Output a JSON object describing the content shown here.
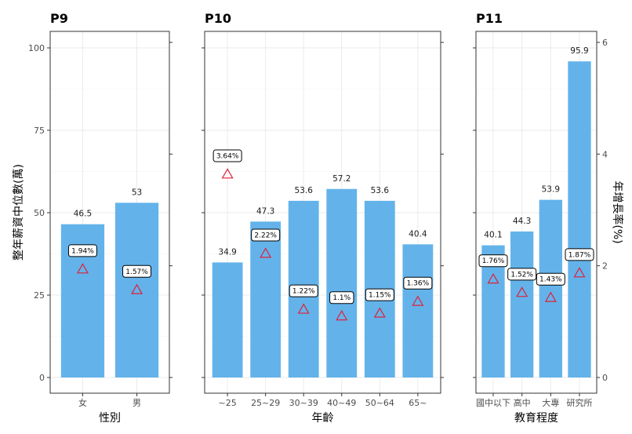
{
  "chart_data": {
    "type": "bar",
    "bar_color": "#63b3ea",
    "marker_color": "#e0203a",
    "left_axis": {
      "title": "整年薪資中位數(萬)",
      "ylim": [
        0,
        100
      ],
      "ticks": [
        "0",
        "25",
        "50",
        "75",
        "100"
      ]
    },
    "right_axis": {
      "title": "年增長率(%)",
      "ylim": [
        0,
        6
      ],
      "ticks": [
        "0",
        "2",
        "4",
        "6"
      ]
    },
    "panels": [
      {
        "title": "P9",
        "xlabel": "性別",
        "categories": [
          "女",
          "男"
        ],
        "values": [
          46.5,
          53
        ],
        "value_labels": [
          "46.5",
          "53"
        ],
        "growth": [
          1.94,
          1.57
        ],
        "growth_labels": [
          "1.94%",
          "1.57%"
        ]
      },
      {
        "title": "P10",
        "xlabel": "年齡",
        "categories": [
          "~25",
          "25~29",
          "30~39",
          "40~49",
          "50~64",
          "65~"
        ],
        "values": [
          34.9,
          47.3,
          53.6,
          57.2,
          53.6,
          40.4
        ],
        "value_labels": [
          "34.9",
          "47.3",
          "53.6",
          "57.2",
          "53.6",
          "40.4"
        ],
        "growth": [
          3.64,
          2.22,
          1.22,
          1.1,
          1.15,
          1.36
        ],
        "growth_labels": [
          "3.64%",
          "2.22%",
          "1.22%",
          "1.1%",
          "1.15%",
          "1.36%"
        ]
      },
      {
        "title": "P11",
        "xlabel": "教育程度",
        "categories": [
          "國中以下",
          "高中",
          "大專",
          "研究所"
        ],
        "values": [
          40.1,
          44.3,
          53.9,
          95.9
        ],
        "value_labels": [
          "40.1",
          "44.3",
          "53.9",
          "95.9"
        ],
        "growth": [
          1.76,
          1.52,
          1.43,
          1.87
        ],
        "growth_labels": [
          "1.76%",
          "1.52%",
          "1.43%",
          "1.87%"
        ]
      }
    ]
  }
}
